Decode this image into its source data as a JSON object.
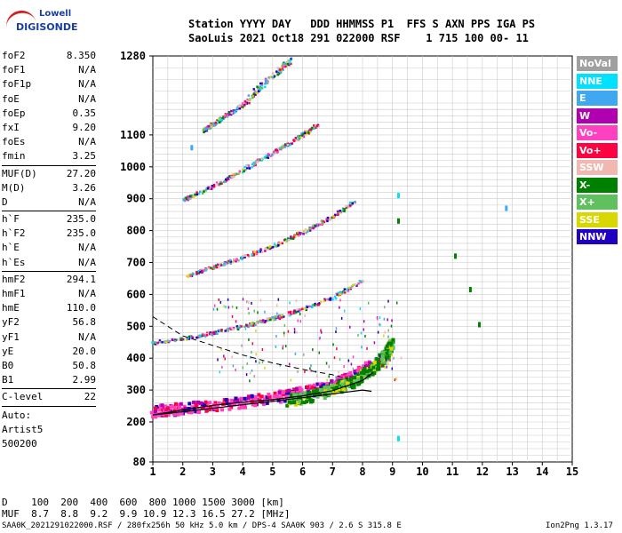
{
  "logo": {
    "line1": "Lowell",
    "line2": "DIGISONDE"
  },
  "header": {
    "row1": "Station YYYY DAY   DDD HHMMSS P1  FFS S AXN PPS IGA PS",
    "row2": "SaoLuis 2021 Oct18 291 022000 RSF    1 715 100 00- 11"
  },
  "params": [
    {
      "k": "foF2",
      "v": "8.350"
    },
    {
      "k": "foF1",
      "v": "N/A"
    },
    {
      "k": "foF1p",
      "v": "N/A"
    },
    {
      "k": "foE",
      "v": "N/A"
    },
    {
      "k": "foEp",
      "v": "0.35"
    },
    {
      "k": "fxI",
      "v": "9.20"
    },
    {
      "k": "foEs",
      "v": "N/A"
    },
    {
      "k": "fmin",
      "v": "3.25"
    },
    {
      "sep": true
    },
    {
      "k": "MUF(D)",
      "v": "27.20"
    },
    {
      "k": "M(D)",
      "v": "3.26"
    },
    {
      "k": "D",
      "v": "N/A"
    },
    {
      "sep": true
    },
    {
      "k": "h`F",
      "v": "235.0"
    },
    {
      "k": "h`F2",
      "v": "235.0"
    },
    {
      "k": "h`E",
      "v": "N/A"
    },
    {
      "k": "h`Es",
      "v": "N/A"
    },
    {
      "sep": true
    },
    {
      "k": "hmF2",
      "v": "294.1"
    },
    {
      "k": "hmF1",
      "v": "N/A"
    },
    {
      "k": "hmE",
      "v": "110.0"
    },
    {
      "k": "yF2",
      "v": "56.8"
    },
    {
      "k": "yF1",
      "v": "N/A"
    },
    {
      "k": "yE",
      "v": "20.0"
    },
    {
      "k": "B0",
      "v": "50.8"
    },
    {
      "k": "B1",
      "v": "2.99"
    },
    {
      "sep": true
    },
    {
      "k": "C-level",
      "v": "22"
    },
    {
      "sep": true
    }
  ],
  "auto": [
    "Auto:",
    "Artist5",
    "500200"
  ],
  "legend": [
    {
      "label": "NoVal",
      "color": "#a0a0a0"
    },
    {
      "label": "NNE",
      "color": "#00e0ff"
    },
    {
      "label": "E",
      "color": "#40a8f0"
    },
    {
      "label": "W",
      "color": "#b000b0"
    },
    {
      "label": "Vo-",
      "color": "#ff40c0"
    },
    {
      "label": "Vo+",
      "color": "#ff0040"
    },
    {
      "label": "SSW",
      "color": "#f0b8b0"
    },
    {
      "label": "X-",
      "color": "#008000"
    },
    {
      "label": "X+",
      "color": "#60c060"
    },
    {
      "label": "SSE",
      "color": "#d8d800"
    },
    {
      "label": "NNW",
      "color": "#2000c0"
    }
  ],
  "muf_table": {
    "row1": "D    100  200  400  600  800 1000 1500 3000 [km]",
    "row2": "MUF  8.7  8.8  9.2  9.9 10.9 12.3 16.5 27.2 [MHz]"
  },
  "footer": {
    "left": "SAA0K_2021291022000.RSF / 280fx256h 50 kHz 5.0 km / DPS-4 SAA0K 903 / 2.6 S 315.8 E",
    "right": "Ion2Png 1.3.17"
  },
  "chart_data": {
    "type": "scatter",
    "title": "",
    "xlabel": "",
    "ylabel": "",
    "x_ticks": [
      1,
      2,
      3,
      4,
      5,
      6,
      7,
      8,
      9,
      10,
      11,
      12,
      13,
      14,
      15
    ],
    "y_ticks": [
      80,
      200,
      300,
      400,
      500,
      600,
      700,
      800,
      900,
      1000,
      1100,
      1280
    ],
    "xlim": [
      1,
      15
    ],
    "ylim": [
      80,
      1280
    ],
    "grid": true,
    "legend_position": "right",
    "traces": [
      {
        "name": "O-trace 1st hop",
        "x": [
          1.0,
          1.6,
          2.4,
          3.2,
          4.0,
          4.8,
          5.6,
          6.4,
          7.2,
          7.8,
          8.3
        ],
        "y": [
          222,
          227,
          234,
          241,
          251,
          262,
          274,
          290,
          312,
          335,
          368
        ]
      },
      {
        "name": "X-trace 1st hop",
        "x": [
          5.5,
          6.2,
          7.0,
          7.7,
          8.3,
          8.8,
          9.0
        ],
        "y": [
          255,
          268,
          290,
          315,
          350,
          400,
          440
        ]
      },
      {
        "name": "2nd hop",
        "x": [
          1.0,
          2.0,
          3.0,
          4.0,
          5.0,
          6.0,
          7.0,
          8.0
        ],
        "y": [
          445,
          458,
          475,
          495,
          520,
          548,
          585,
          640
        ]
      },
      {
        "name": "3rd hop",
        "x": [
          2.0,
          3.0,
          4.0,
          5.0,
          6.0,
          7.0,
          7.8
        ],
        "y": [
          650,
          680,
          712,
          748,
          790,
          840,
          890
        ]
      },
      {
        "name": "4th hop",
        "x": [
          2.0,
          3.0,
          4.0,
          5.0,
          6.0,
          6.5
        ],
        "y": [
          890,
          935,
          985,
          1040,
          1095,
          1130
        ]
      },
      {
        "name": "5th hop",
        "x": [
          2.7,
          3.5,
          4.5,
          5.6
        ],
        "y": [
          1110,
          1160,
          1220,
          1270
        ]
      }
    ],
    "model_curves": [
      {
        "name": "profile",
        "x": [
          1.0,
          2.0,
          3.0,
          4.0,
          5.0,
          6.0,
          7.0,
          8.0,
          8.3
        ],
        "y": [
          222,
          232,
          243,
          254,
          265,
          276,
          288,
          300,
          296
        ]
      },
      {
        "name": "virtual",
        "x": [
          1.0,
          2.0,
          3.0,
          4.0,
          5.0,
          6.0,
          7.0,
          8.0,
          8.35
        ],
        "y": [
          222,
          238,
          252,
          262,
          270,
          282,
          298,
          330,
          355
        ]
      }
    ],
    "dashed_curve": {
      "x": [
        1.0,
        2.0,
        3.0,
        4.0,
        5.0,
        6.0,
        7.0,
        7.5
      ],
      "y": [
        530,
        470,
        440,
        410,
        385,
        365,
        348,
        335
      ]
    }
  }
}
